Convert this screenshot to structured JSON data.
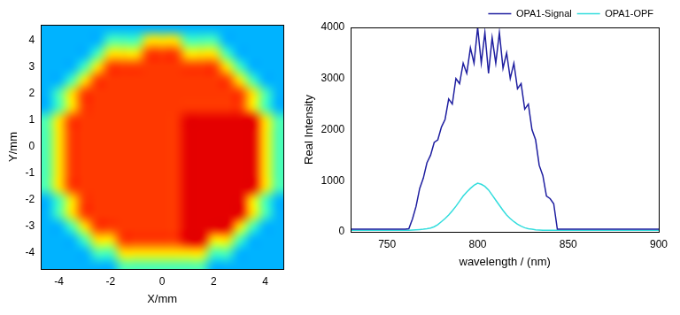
{
  "chart_data": [
    {
      "type": "heatmap",
      "x_label": "X/mm",
      "y_label": "Y/mm",
      "x": [
        -4.5,
        -4,
        -3.5,
        -3,
        -2.5,
        -2,
        -1.5,
        -1,
        -0.5,
        0,
        0.5,
        1,
        1.5,
        2,
        2.5,
        3,
        3.5,
        4,
        4.5
      ],
      "y": [
        4.5,
        4,
        3.5,
        3,
        2.5,
        2,
        1.5,
        1,
        0.5,
        0,
        -0.5,
        -1,
        -1.5,
        -2,
        -2.5,
        -3,
        -3.5,
        -4,
        -4.5
      ],
      "cells": [
        [
          0.3,
          0.3,
          0.3,
          0.3,
          0.3,
          0.3,
          0.3,
          0.3,
          0.3,
          0.3,
          0.3,
          0.3,
          0.3,
          0.3,
          0.3,
          0.3,
          0.3,
          0.3,
          0.3
        ],
        [
          0.3,
          0.3,
          0.3,
          0.3,
          0.3,
          0.45,
          0.45,
          0.45,
          0.65,
          0.65,
          0.65,
          0.45,
          0.45,
          0.45,
          0.3,
          0.3,
          0.3,
          0.3,
          0.3
        ],
        [
          0.3,
          0.3,
          0.3,
          0.3,
          0.45,
          0.65,
          0.65,
          0.65,
          0.82,
          0.82,
          0.82,
          0.65,
          0.65,
          0.65,
          0.45,
          0.3,
          0.3,
          0.3,
          0.3
        ],
        [
          0.3,
          0.3,
          0.3,
          0.45,
          0.65,
          0.82,
          0.82,
          0.82,
          0.82,
          0.82,
          0.82,
          0.82,
          0.82,
          0.82,
          0.65,
          0.45,
          0.3,
          0.3,
          0.3
        ],
        [
          0.3,
          0.3,
          0.45,
          0.65,
          0.82,
          0.82,
          0.82,
          0.82,
          0.82,
          0.82,
          0.82,
          0.82,
          0.82,
          0.82,
          0.82,
          0.65,
          0.45,
          0.3,
          0.3
        ],
        [
          0.3,
          0.45,
          0.65,
          0.82,
          0.82,
          0.82,
          0.82,
          0.82,
          0.82,
          0.82,
          0.82,
          0.82,
          0.82,
          0.82,
          0.82,
          0.82,
          0.65,
          0.45,
          0.3
        ],
        [
          0.3,
          0.45,
          0.65,
          0.82,
          0.82,
          0.82,
          0.82,
          0.82,
          0.82,
          0.82,
          0.82,
          0.82,
          0.82,
          0.82,
          0.82,
          0.82,
          0.65,
          0.45,
          0.3
        ],
        [
          0.45,
          0.65,
          0.82,
          0.82,
          0.82,
          0.82,
          0.82,
          0.82,
          0.82,
          0.82,
          0.82,
          0.9,
          0.9,
          0.9,
          0.9,
          0.9,
          0.9,
          0.65,
          0.45
        ],
        [
          0.45,
          0.65,
          0.82,
          0.82,
          0.82,
          0.82,
          0.82,
          0.82,
          0.82,
          0.82,
          0.82,
          0.9,
          0.9,
          0.9,
          0.9,
          0.9,
          0.9,
          0.65,
          0.45
        ],
        [
          0.45,
          0.65,
          0.82,
          0.82,
          0.82,
          0.82,
          0.82,
          0.82,
          0.82,
          0.82,
          0.82,
          0.9,
          0.9,
          0.9,
          0.9,
          0.9,
          0.9,
          0.65,
          0.45
        ],
        [
          0.45,
          0.65,
          0.82,
          0.82,
          0.82,
          0.82,
          0.82,
          0.82,
          0.82,
          0.82,
          0.82,
          0.9,
          0.9,
          0.9,
          0.9,
          0.9,
          0.9,
          0.65,
          0.45
        ],
        [
          0.45,
          0.65,
          0.82,
          0.82,
          0.82,
          0.82,
          0.82,
          0.82,
          0.82,
          0.82,
          0.82,
          0.9,
          0.9,
          0.9,
          0.9,
          0.9,
          0.9,
          0.65,
          0.45
        ],
        [
          0.45,
          0.65,
          0.82,
          0.82,
          0.82,
          0.82,
          0.82,
          0.82,
          0.82,
          0.82,
          0.82,
          0.9,
          0.9,
          0.9,
          0.9,
          0.9,
          0.9,
          0.65,
          0.45
        ],
        [
          0.3,
          0.45,
          0.65,
          0.82,
          0.82,
          0.82,
          0.82,
          0.82,
          0.82,
          0.82,
          0.82,
          0.9,
          0.9,
          0.9,
          0.9,
          0.9,
          0.65,
          0.45,
          0.3
        ],
        [
          0.3,
          0.45,
          0.65,
          0.82,
          0.82,
          0.82,
          0.82,
          0.82,
          0.82,
          0.82,
          0.82,
          0.9,
          0.9,
          0.9,
          0.9,
          0.9,
          0.65,
          0.45,
          0.3
        ],
        [
          0.3,
          0.3,
          0.45,
          0.65,
          0.82,
          0.82,
          0.82,
          0.82,
          0.82,
          0.82,
          0.82,
          0.9,
          0.9,
          0.9,
          0.9,
          0.65,
          0.45,
          0.3,
          0.3
        ],
        [
          0.3,
          0.3,
          0.3,
          0.45,
          0.65,
          0.65,
          0.82,
          0.82,
          0.82,
          0.82,
          0.82,
          0.9,
          0.9,
          0.65,
          0.65,
          0.45,
          0.3,
          0.3,
          0.3
        ],
        [
          0.3,
          0.3,
          0.3,
          0.3,
          0.45,
          0.45,
          0.65,
          0.65,
          0.65,
          0.65,
          0.65,
          0.65,
          0.65,
          0.45,
          0.45,
          0.3,
          0.3,
          0.3,
          0.3
        ],
        [
          0.3,
          0.3,
          0.3,
          0.3,
          0.3,
          0.3,
          0.45,
          0.45,
          0.45,
          0.45,
          0.45,
          0.45,
          0.45,
          0.3,
          0.3,
          0.3,
          0.3,
          0.3,
          0.3
        ]
      ],
      "zlim": [
        0,
        1
      ],
      "xlim": [
        -4.7,
        4.7
      ],
      "xticks": [
        -4,
        -2,
        0,
        2,
        4
      ],
      "ylim": [
        -4.6,
        4.6
      ],
      "yticks": [
        -4,
        -3,
        -2,
        -1,
        0,
        1,
        2,
        3,
        4
      ]
    },
    {
      "type": "line",
      "x_label": "wavelength / (nm)",
      "y_label": "Real Intensity",
      "x": [
        730,
        732,
        734,
        736,
        738,
        740,
        742,
        744,
        746,
        748,
        750,
        752,
        754,
        756,
        758,
        760,
        762,
        764,
        766,
        768,
        770,
        772,
        774,
        776,
        778,
        780,
        782,
        784,
        786,
        788,
        790,
        792,
        794,
        796,
        798,
        800,
        802,
        804,
        806,
        808,
        810,
        812,
        814,
        816,
        818,
        820,
        822,
        824,
        826,
        828,
        830,
        832,
        834,
        836,
        838,
        840,
        842,
        844,
        846,
        848,
        850,
        852,
        854,
        856,
        858,
        860,
        862,
        864,
        866,
        868,
        870,
        872,
        874,
        876,
        878,
        880,
        882,
        884,
        886,
        888,
        890,
        892,
        894,
        896,
        898,
        900
      ],
      "series": [
        {
          "name": "OPA1-Signal",
          "color": "#1f1fa0",
          "values": [
            50,
            50,
            50,
            50,
            50,
            50,
            50,
            50,
            50,
            50,
            50,
            50,
            50,
            50,
            50,
            50,
            60,
            250,
            500,
            850,
            1050,
            1350,
            1500,
            1750,
            1800,
            2050,
            2200,
            2600,
            2500,
            3000,
            2900,
            3300,
            3100,
            3600,
            3300,
            4000,
            3300,
            3900,
            3100,
            3800,
            3300,
            3900,
            3200,
            3500,
            3000,
            3300,
            2800,
            2900,
            2400,
            2500,
            2000,
            1800,
            1300,
            1100,
            700,
            650,
            550,
            50,
            50,
            50,
            50,
            50,
            50,
            50,
            50,
            50,
            50,
            50,
            50,
            50,
            50,
            50,
            50,
            50,
            50,
            50,
            50,
            50,
            50,
            50,
            50,
            50,
            50,
            50,
            50,
            50
          ]
        },
        {
          "name": "OPA1-OPF",
          "color": "#33dddd",
          "values": [
            30,
            30,
            30,
            30,
            30,
            30,
            30,
            30,
            30,
            30,
            30,
            30,
            30,
            30,
            30,
            30,
            30,
            35,
            40,
            45,
            50,
            60,
            75,
            100,
            140,
            200,
            260,
            330,
            410,
            500,
            600,
            700,
            780,
            850,
            910,
            950,
            930,
            890,
            820,
            720,
            620,
            520,
            420,
            330,
            260,
            200,
            150,
            110,
            80,
            60,
            50,
            40,
            35,
            30,
            30,
            30,
            30,
            30,
            30,
            30,
            30,
            30,
            30,
            30,
            30,
            30,
            30,
            30,
            30,
            30,
            30,
            30,
            30,
            30,
            30,
            30,
            30,
            30,
            30,
            30,
            30,
            30,
            30,
            30,
            30,
            30
          ]
        }
      ],
      "xlim": [
        730,
        900
      ],
      "xticks": [
        750,
        800,
        850,
        900
      ],
      "ylim": [
        0,
        4000
      ],
      "yticks": [
        0,
        1000,
        2000,
        3000,
        4000
      ],
      "legend": "upper right"
    }
  ]
}
